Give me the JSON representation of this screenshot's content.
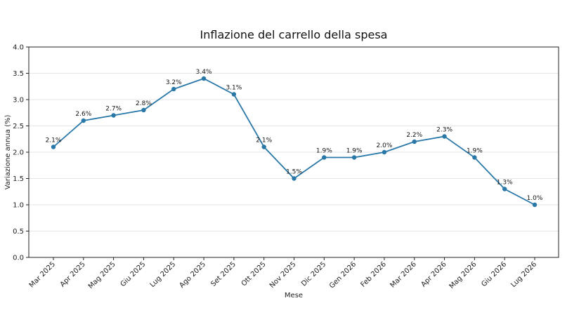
{
  "chart_data": {
    "type": "line",
    "title": "Inflazione del carrello della spesa",
    "xlabel": "Mese",
    "ylabel": "Variazione annua (%)",
    "ylim": [
      0,
      4.0
    ],
    "yticks": [
      "0.0",
      "0.5",
      "1.0",
      "1.5",
      "2.0",
      "2.5",
      "3.0",
      "3.5",
      "4.0"
    ],
    "grid": "horizontal",
    "categories": [
      "Mar 2025",
      "Apr 2025",
      "Mag 2025",
      "Giu 2025",
      "Lug 2025",
      "Ago 2025",
      "Set 2025",
      "Ott 2025",
      "Nov 2025",
      "Dic 2025",
      "Gen 2026",
      "Feb 2026",
      "Mar 2026",
      "Apr 2026",
      "Mag 2026",
      "Giu 2026",
      "Lug 2026"
    ],
    "series": [
      {
        "values": [
          2.1,
          2.6,
          2.7,
          2.8,
          3.2,
          3.4,
          3.1,
          2.1,
          1.5,
          1.9,
          1.9,
          2.0,
          2.2,
          2.3,
          1.9,
          1.3,
          1.0
        ],
        "labels": [
          "2.1%",
          "2.6%",
          "2.7%",
          "2.8%",
          "3.2%",
          "3.4%",
          "3.1%",
          "2.1%",
          "1.5%",
          "1.9%",
          "1.9%",
          "2.0%",
          "2.2%",
          "2.3%",
          "1.9%",
          "1.3%",
          "1.0%"
        ],
        "color": "#2a78a8"
      }
    ]
  }
}
